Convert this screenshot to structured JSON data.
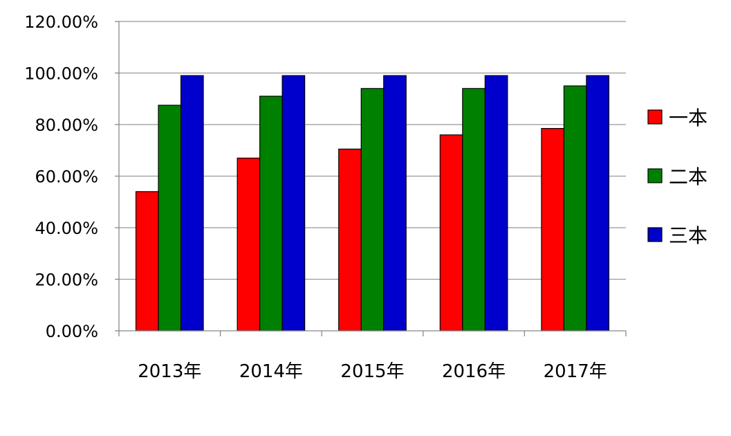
{
  "chart_data": {
    "type": "bar",
    "categories": [
      "2013年",
      "2014年",
      "2015年",
      "2016年",
      "2017年"
    ],
    "series": [
      {
        "name": "一本",
        "color": "#ff0000",
        "values": [
          0.54,
          0.67,
          0.705,
          0.76,
          0.785
        ]
      },
      {
        "name": "二本",
        "color": "#008000",
        "values": [
          0.875,
          0.91,
          0.94,
          0.94,
          0.95
        ]
      },
      {
        "name": "三本",
        "color": "#0000cc",
        "values": [
          0.99,
          0.99,
          0.99,
          0.99,
          0.99
        ]
      }
    ],
    "ylim": [
      0,
      1.2
    ],
    "yticks": [
      0,
      0.2,
      0.4,
      0.6,
      0.8,
      1.0,
      1.2
    ],
    "ytick_labels": [
      "0.00%",
      "20.00%",
      "40.00%",
      "60.00%",
      "80.00%",
      "100.00%",
      "120.00%"
    ],
    "grid": true,
    "gridline_color": "#999999",
    "legend_position": "right"
  }
}
